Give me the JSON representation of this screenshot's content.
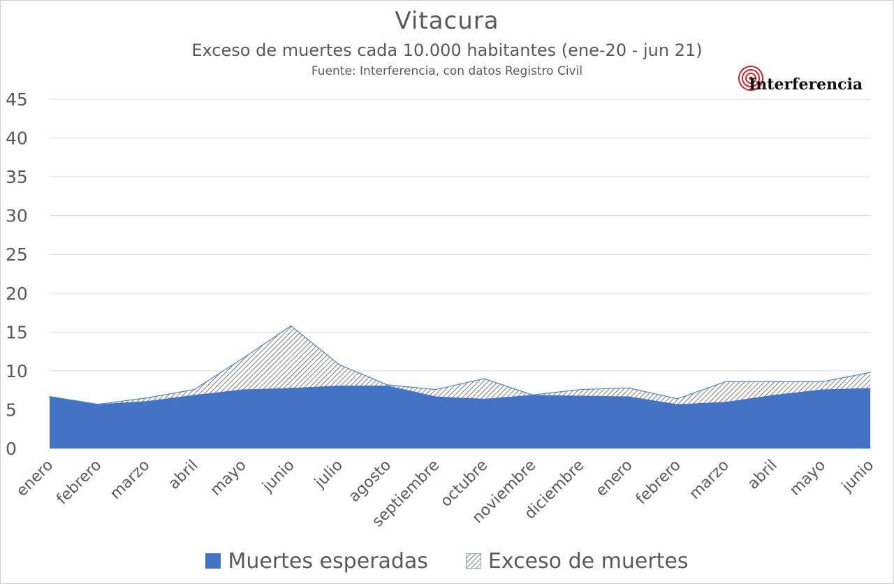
{
  "header": {
    "title": "Vitacura",
    "subtitle": "Exceso de muertes cada 10.000 habitantes (ene-20  - jun 21)",
    "source": "Fuente: Interferencia, con datos Registro Civil"
  },
  "logo": {
    "text": "Interferencia",
    "icon": "concentric-circles-icon",
    "color": "#d0202a"
  },
  "colors": {
    "expected": "#4472c4",
    "excess_hatch": "#595959",
    "grid": "#d9d9d9",
    "text": "#595959",
    "outline": "#4a86c8"
  },
  "chart_data": {
    "type": "area",
    "categories": [
      "enero",
      "febrero",
      "marzo",
      "abril",
      "mayo",
      "junio",
      "julio",
      "agosto",
      "septiembre",
      "octubre",
      "noviembre",
      "diciembre",
      "enero",
      "febrero",
      "marzo",
      "abril",
      "mayo",
      "junio"
    ],
    "series": [
      {
        "name": "Muertes esperadas",
        "values": [
          6.7,
          5.7,
          6.1,
          6.9,
          7.6,
          7.8,
          8.1,
          8.1,
          6.7,
          6.4,
          6.9,
          6.8,
          6.7,
          5.7,
          6.0,
          6.9,
          7.6,
          7.8
        ]
      },
      {
        "name": "Exceso de muertes",
        "values": [
          0.0,
          0.0,
          0.4,
          0.7,
          4.0,
          8.0,
          2.7,
          0.1,
          0.9,
          2.6,
          0.0,
          0.8,
          1.1,
          0.7,
          2.6,
          1.7,
          1.0,
          2.0
        ]
      }
    ],
    "stacked": true,
    "ylim": [
      0,
      45
    ],
    "yticks": [
      0,
      5,
      10,
      15,
      20,
      25,
      30,
      35,
      40,
      45
    ],
    "grid": true,
    "legend": "bottom"
  }
}
